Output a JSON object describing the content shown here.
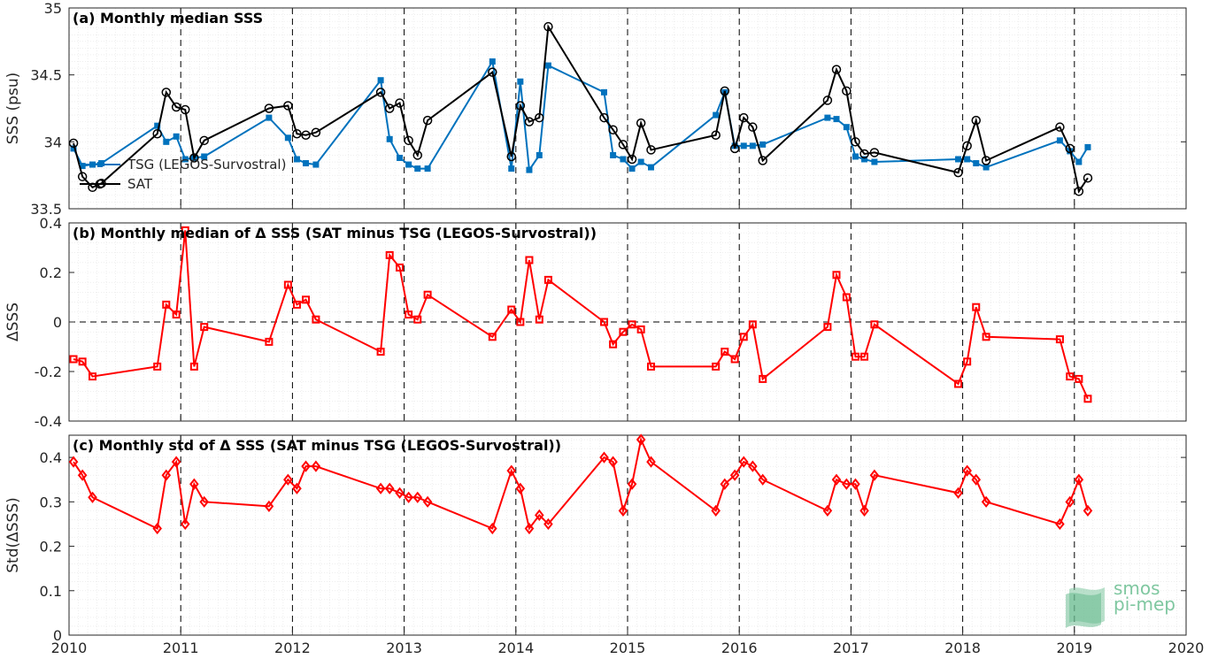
{
  "logo": {
    "line1": "smos",
    "line2": "pi-mep"
  },
  "chart_data": [
    {
      "type": "line",
      "title": "(a) Monthly median SSS",
      "xlabel": "",
      "ylabel": "SSS (psu)",
      "xlim": [
        2010,
        2020
      ],
      "ylim": [
        33.5,
        35
      ],
      "xticks": [
        "2010",
        "2011",
        "2012",
        "2013",
        "2014",
        "2015",
        "2016",
        "2017",
        "2018",
        "2019",
        "2020"
      ],
      "yticks": [
        "33.5",
        "34",
        "34.5",
        "35"
      ],
      "grid": true,
      "legend": "top-left",
      "series": [
        {
          "name": "TSG (LEGOS-Survostral)",
          "color": "#0072BD",
          "x": [
            2010.04,
            2010.12,
            2010.21,
            2010.29,
            2010.79,
            2010.87,
            2010.96,
            2011.04,
            2011.12,
            2011.21,
            2011.79,
            2011.96,
            2012.04,
            2012.12,
            2012.21,
            2012.79,
            2012.87,
            2012.96,
            2013.04,
            2013.12,
            2013.21,
            2013.79,
            2013.96,
            2014.04,
            2014.12,
            2014.21,
            2014.29,
            2014.79,
            2014.87,
            2014.96,
            2015.04,
            2015.12,
            2015.21,
            2015.79,
            2015.87,
            2015.96,
            2016.04,
            2016.12,
            2016.21,
            2016.79,
            2016.87,
            2016.96,
            2017.04,
            2017.12,
            2017.21,
            2017.96,
            2018.04,
            2018.12,
            2018.21,
            2018.87,
            2018.96,
            2019.04,
            2019.12
          ],
          "y": [
            33.95,
            33.82,
            33.83,
            33.84,
            34.12,
            34.0,
            34.04,
            33.87,
            33.88,
            33.89,
            34.18,
            34.03,
            33.87,
            33.84,
            33.83,
            34.46,
            34.02,
            33.88,
            33.83,
            33.8,
            33.8,
            34.6,
            33.8,
            34.45,
            33.79,
            33.9,
            34.57,
            34.37,
            33.9,
            33.87,
            33.8,
            33.85,
            33.81,
            34.2,
            34.37,
            33.97,
            33.97,
            33.97,
            33.98,
            34.18,
            34.17,
            34.11,
            33.89,
            33.87,
            33.85,
            33.87,
            33.87,
            33.84,
            33.81,
            34.01,
            33.93,
            33.85,
            33.96
          ]
        },
        {
          "name": "SAT",
          "color": "#000000",
          "x": [
            2010.04,
            2010.12,
            2010.21,
            2010.29,
            2010.79,
            2010.87,
            2010.96,
            2011.04,
            2011.12,
            2011.21,
            2011.79,
            2011.96,
            2012.04,
            2012.12,
            2012.21,
            2012.79,
            2012.87,
            2012.96,
            2013.04,
            2013.12,
            2013.21,
            2013.79,
            2013.96,
            2014.04,
            2014.12,
            2014.21,
            2014.29,
            2014.79,
            2014.87,
            2014.96,
            2015.04,
            2015.12,
            2015.21,
            2015.79,
            2015.87,
            2015.96,
            2016.04,
            2016.12,
            2016.21,
            2016.79,
            2016.87,
            2016.96,
            2017.04,
            2017.12,
            2017.21,
            2017.96,
            2018.04,
            2018.12,
            2018.21,
            2018.87,
            2018.96,
            2019.04,
            2019.12
          ],
          "y": [
            33.99,
            33.74,
            33.66,
            33.69,
            34.06,
            34.37,
            34.26,
            34.24,
            33.88,
            34.01,
            34.25,
            34.27,
            34.06,
            34.05,
            34.07,
            34.37,
            34.25,
            34.29,
            34.01,
            33.9,
            34.16,
            34.52,
            33.89,
            34.27,
            34.15,
            34.18,
            34.86,
            34.18,
            34.09,
            33.98,
            33.87,
            34.14,
            33.94,
            34.05,
            34.38,
            33.95,
            34.18,
            34.11,
            33.86,
            34.31,
            34.54,
            34.38,
            34.0,
            33.91,
            33.92,
            33.77,
            33.97,
            34.16,
            33.86,
            34.11,
            33.95,
            33.63,
            33.73
          ]
        }
      ]
    },
    {
      "type": "line",
      "title": "(b) Monthly median of Δ SSS (SAT minus TSG (LEGOS-Survostral))",
      "xlabel": "",
      "ylabel": "ΔSSS",
      "xlim": [
        2010,
        2020
      ],
      "ylim": [
        -0.4,
        0.4
      ],
      "xticks": [],
      "yticks": [
        "-0.4",
        "-0.2",
        "0",
        "0.2",
        "0.4"
      ],
      "grid": true,
      "series": [
        {
          "name": "",
          "color": "#FF0000",
          "x": [
            2010.04,
            2010.12,
            2010.21,
            2010.79,
            2010.87,
            2010.96,
            2011.04,
            2011.12,
            2011.21,
            2011.79,
            2011.96,
            2012.04,
            2012.12,
            2012.21,
            2012.79,
            2012.87,
            2012.96,
            2013.04,
            2013.12,
            2013.21,
            2013.79,
            2013.96,
            2014.04,
            2014.12,
            2014.21,
            2014.29,
            2014.79,
            2014.87,
            2014.96,
            2015.04,
            2015.12,
            2015.21,
            2015.79,
            2015.87,
            2015.96,
            2016.04,
            2016.12,
            2016.21,
            2016.79,
            2016.87,
            2016.96,
            2017.04,
            2017.12,
            2017.21,
            2017.96,
            2018.04,
            2018.12,
            2018.21,
            2018.87,
            2018.96,
            2019.04,
            2019.12
          ],
          "y": [
            -0.15,
            -0.16,
            -0.22,
            -0.18,
            0.07,
            0.03,
            0.37,
            -0.18,
            -0.02,
            -0.08,
            0.15,
            0.07,
            0.09,
            0.01,
            -0.12,
            0.27,
            0.22,
            0.03,
            0.01,
            0.11,
            -0.06,
            0.05,
            0.0,
            0.25,
            0.01,
            0.17,
            0.0,
            -0.09,
            -0.04,
            -0.01,
            -0.03,
            -0.18,
            -0.18,
            -0.12,
            -0.15,
            -0.06,
            -0.01,
            -0.23,
            -0.02,
            0.19,
            0.1,
            -0.14,
            -0.14,
            -0.01,
            -0.25,
            -0.16,
            0.06,
            -0.06,
            -0.07,
            -0.22,
            -0.23,
            -0.31
          ]
        }
      ]
    },
    {
      "type": "line",
      "title": "(c) Monthly std of Δ SSS (SAT minus TSG (LEGOS-Survostral))",
      "xlabel": "",
      "ylabel": "Std(ΔSSS)",
      "xlim": [
        2010,
        2020
      ],
      "ylim": [
        0,
        0.45
      ],
      "xticks": [
        "2010",
        "2011",
        "2012",
        "2013",
        "2014",
        "2015",
        "2016",
        "2017",
        "2018",
        "2019",
        "2020"
      ],
      "yticks": [
        "0",
        "0.1",
        "0.2",
        "0.3",
        "0.4"
      ],
      "grid": true,
      "series": [
        {
          "name": "",
          "color": "#FF0000",
          "x": [
            2010.04,
            2010.12,
            2010.21,
            2010.79,
            2010.87,
            2010.96,
            2011.04,
            2011.12,
            2011.21,
            2011.79,
            2011.96,
            2012.04,
            2012.12,
            2012.21,
            2012.79,
            2012.87,
            2012.96,
            2013.04,
            2013.12,
            2013.21,
            2013.79,
            2013.96,
            2014.04,
            2014.12,
            2014.21,
            2014.29,
            2014.79,
            2014.87,
            2014.96,
            2015.04,
            2015.12,
            2015.21,
            2015.79,
            2015.87,
            2015.96,
            2016.04,
            2016.12,
            2016.21,
            2016.79,
            2016.87,
            2016.96,
            2017.04,
            2017.12,
            2017.21,
            2017.96,
            2018.04,
            2018.12,
            2018.21,
            2018.87,
            2018.96,
            2019.04,
            2019.12
          ],
          "y": [
            0.39,
            0.36,
            0.31,
            0.24,
            0.36,
            0.39,
            0.25,
            0.34,
            0.3,
            0.29,
            0.35,
            0.33,
            0.38,
            0.38,
            0.33,
            0.33,
            0.32,
            0.31,
            0.31,
            0.3,
            0.24,
            0.37,
            0.33,
            0.24,
            0.27,
            0.25,
            0.4,
            0.39,
            0.28,
            0.34,
            0.44,
            0.39,
            0.28,
            0.34,
            0.36,
            0.39,
            0.38,
            0.35,
            0.28,
            0.35,
            0.34,
            0.34,
            0.28,
            0.36,
            0.32,
            0.37,
            0.35,
            0.3,
            0.25,
            0.3,
            0.35,
            0.28
          ]
        }
      ]
    }
  ]
}
